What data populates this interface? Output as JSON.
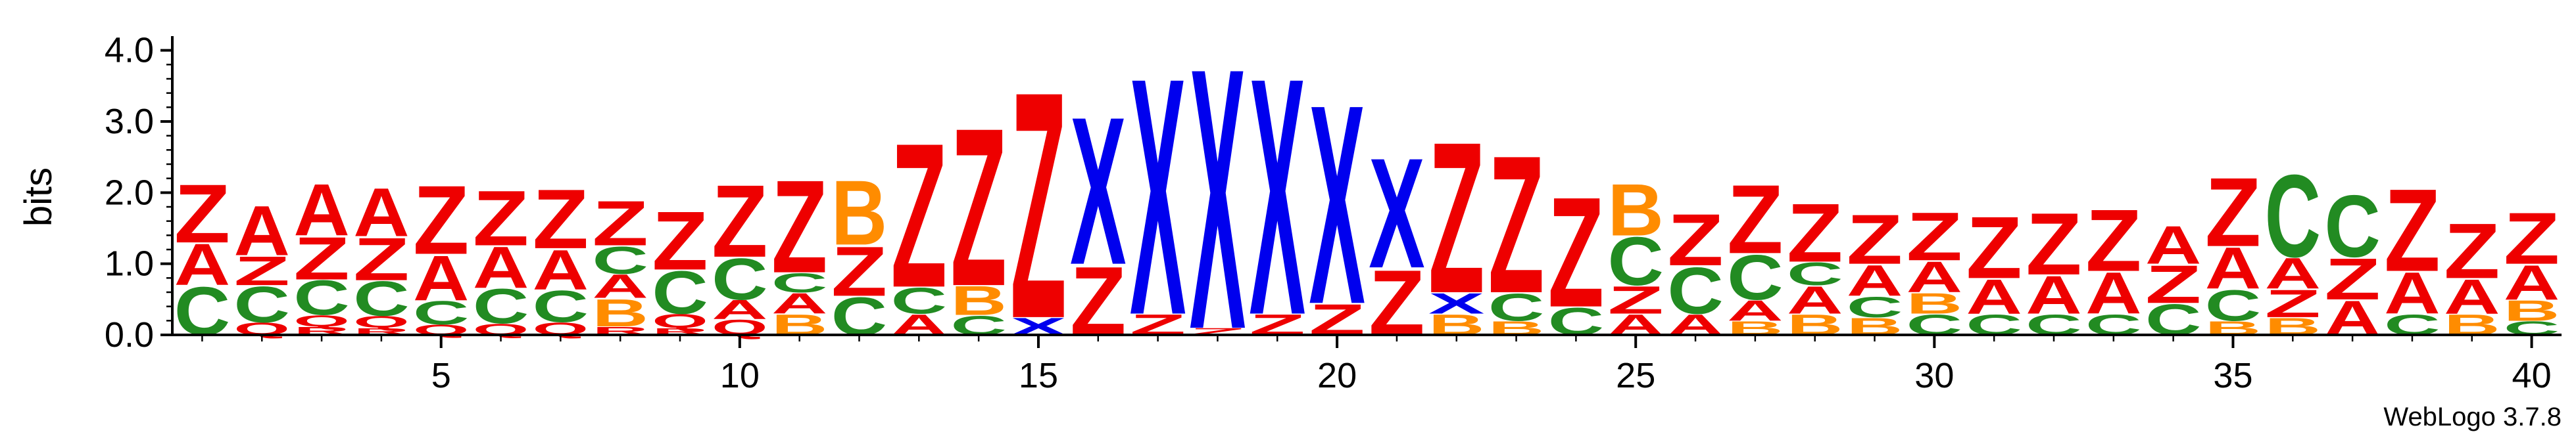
{
  "chart_data": {
    "type": "sequence-logo",
    "title": "",
    "ylabel": "bits",
    "xlabel": "",
    "ylim": [
      0,
      4.2
    ],
    "yticks": [
      "0.0",
      "1.0",
      "2.0",
      "3.0",
      "4.0"
    ],
    "xticks": [
      5,
      10,
      15,
      20,
      25,
      30,
      35,
      40
    ],
    "positions": 40,
    "footer": "WebLogo 3.7.8",
    "colors": {
      "Z": "#ee0000",
      "A": "#ee0000",
      "X": "#0000ee",
      "C": "#228b22",
      "B": "#ff8c00",
      "Q": "#ee0000",
      "R": "#ee0000"
    },
    "stacks": [
      [
        [
          "C",
          0.7
        ],
        [
          "A",
          0.6
        ],
        [
          "Z",
          0.85
        ]
      ],
      [
        [
          "Q",
          0.18
        ],
        [
          "C",
          0.52
        ],
        [
          "Z",
          0.42
        ],
        [
          "A",
          0.72
        ]
      ],
      [
        [
          "R",
          0.12
        ],
        [
          "Q",
          0.16
        ],
        [
          "C",
          0.5
        ],
        [
          "Z",
          0.62
        ],
        [
          "A",
          0.75
        ]
      ],
      [
        [
          "R",
          0.1
        ],
        [
          "Q",
          0.17
        ],
        [
          "C",
          0.5
        ],
        [
          "Z",
          0.62
        ],
        [
          "A",
          0.7
        ]
      ],
      [
        [
          "Q",
          0.15
        ],
        [
          "C",
          0.34
        ],
        [
          "A",
          0.65
        ],
        [
          "Z",
          1.0
        ]
      ],
      [
        [
          "Q",
          0.16
        ],
        [
          "C",
          0.5
        ],
        [
          "A",
          0.6
        ],
        [
          "Z",
          0.8
        ]
      ],
      [
        [
          "Q",
          0.18
        ],
        [
          "C",
          0.46
        ],
        [
          "A",
          0.58
        ],
        [
          "Z",
          0.86
        ]
      ],
      [
        [
          "R",
          0.12
        ],
        [
          "B",
          0.4
        ],
        [
          "A",
          0.34
        ],
        [
          "C",
          0.4
        ],
        [
          "Z",
          0.65
        ]
      ],
      [
        [
          "R",
          0.1
        ],
        [
          "Q",
          0.2
        ],
        [
          "C",
          0.62
        ],
        [
          "Z",
          0.85
        ]
      ],
      [
        [
          "Q",
          0.22
        ],
        [
          "A",
          0.28
        ],
        [
          "C",
          0.6
        ],
        [
          "Z",
          1.05
        ]
      ],
      [
        [
          "B",
          0.3
        ],
        [
          "A",
          0.3
        ],
        [
          "C",
          0.28
        ],
        [
          "Z",
          1.35
        ]
      ],
      [
        [
          "C",
          0.55
        ],
        [
          "Z",
          0.72
        ],
        [
          "B",
          0.94
        ]
      ],
      [
        [
          "A",
          0.3
        ],
        [
          "C",
          0.38
        ],
        [
          "Z",
          2.1
        ]
      ],
      [
        [
          "C",
          0.28
        ],
        [
          "B",
          0.42
        ],
        [
          "Z",
          2.3
        ]
      ],
      [
        [
          "X",
          0.25
        ],
        [
          "Z",
          3.3
        ]
      ],
      [
        [
          "Z",
          1.0
        ],
        [
          "X",
          2.15
        ]
      ],
      [
        [
          "Z",
          0.3
        ],
        [
          "X",
          3.45
        ]
      ],
      [
        [
          "Z",
          0.1
        ],
        [
          "X",
          3.8
        ]
      ],
      [
        [
          "Z",
          0.3
        ],
        [
          "X",
          3.45
        ]
      ],
      [
        [
          "Z",
          0.45
        ],
        [
          "X",
          2.9
        ]
      ],
      [
        [
          "Z",
          0.95
        ],
        [
          "X",
          1.6
        ]
      ],
      [
        [
          "B",
          0.3
        ],
        [
          "X",
          0.3
        ],
        [
          "Z",
          2.2
        ]
      ],
      [
        [
          "B",
          0.2
        ],
        [
          "C",
          0.4
        ],
        [
          "Z",
          2.0
        ]
      ],
      [
        [
          "C",
          0.4
        ],
        [
          "Z",
          1.6
        ]
      ],
      [
        [
          "A",
          0.3
        ],
        [
          "Z",
          0.4
        ],
        [
          "C",
          0.7
        ],
        [
          "B",
          0.75
        ]
      ],
      [
        [
          "A",
          0.3
        ],
        [
          "C",
          0.68
        ],
        [
          "Z",
          0.75
        ]
      ],
      [
        [
          "B",
          0.2
        ],
        [
          "A",
          0.3
        ],
        [
          "C",
          0.65
        ],
        [
          "Z",
          1.0
        ]
      ],
      [
        [
          "B",
          0.3
        ],
        [
          "A",
          0.4
        ],
        [
          "C",
          0.33
        ],
        [
          "Z",
          0.85
        ]
      ],
      [
        [
          "B",
          0.25
        ],
        [
          "C",
          0.3
        ],
        [
          "A",
          0.45
        ],
        [
          "Z",
          0.72
        ]
      ],
      [
        [
          "C",
          0.3
        ],
        [
          "B",
          0.3
        ],
        [
          "A",
          0.45
        ],
        [
          "Z",
          0.7
        ]
      ],
      [
        [
          "C",
          0.3
        ],
        [
          "A",
          0.5
        ],
        [
          "Z",
          0.9
        ]
      ],
      [
        [
          "C",
          0.3
        ],
        [
          "A",
          0.55
        ],
        [
          "Z",
          0.9
        ]
      ],
      [
        [
          "C",
          0.3
        ],
        [
          "A",
          0.6
        ],
        [
          "Z",
          0.9
        ]
      ],
      [
        [
          "C",
          0.45
        ],
        [
          "Z",
          0.55
        ],
        [
          "A",
          0.55
        ]
      ],
      [
        [
          "B",
          0.2
        ],
        [
          "C",
          0.45
        ],
        [
          "A",
          0.6
        ],
        [
          "Z",
          1.0
        ]
      ],
      [
        [
          "B",
          0.25
        ],
        [
          "Z",
          0.4
        ],
        [
          "A",
          0.45
        ],
        [
          "C",
          1.2
        ]
      ],
      [
        [
          "A",
          0.5
        ],
        [
          "Z",
          0.6
        ],
        [
          "C",
          0.9
        ]
      ],
      [
        [
          "C",
          0.3
        ],
        [
          "A",
          0.6
        ],
        [
          "Z",
          1.2
        ]
      ],
      [
        [
          "B",
          0.3
        ],
        [
          "A",
          0.5
        ],
        [
          "Z",
          0.8
        ]
      ],
      [
        [
          "C",
          0.2
        ],
        [
          "B",
          0.3
        ],
        [
          "A",
          0.5
        ],
        [
          "Z",
          0.75
        ]
      ]
    ]
  }
}
